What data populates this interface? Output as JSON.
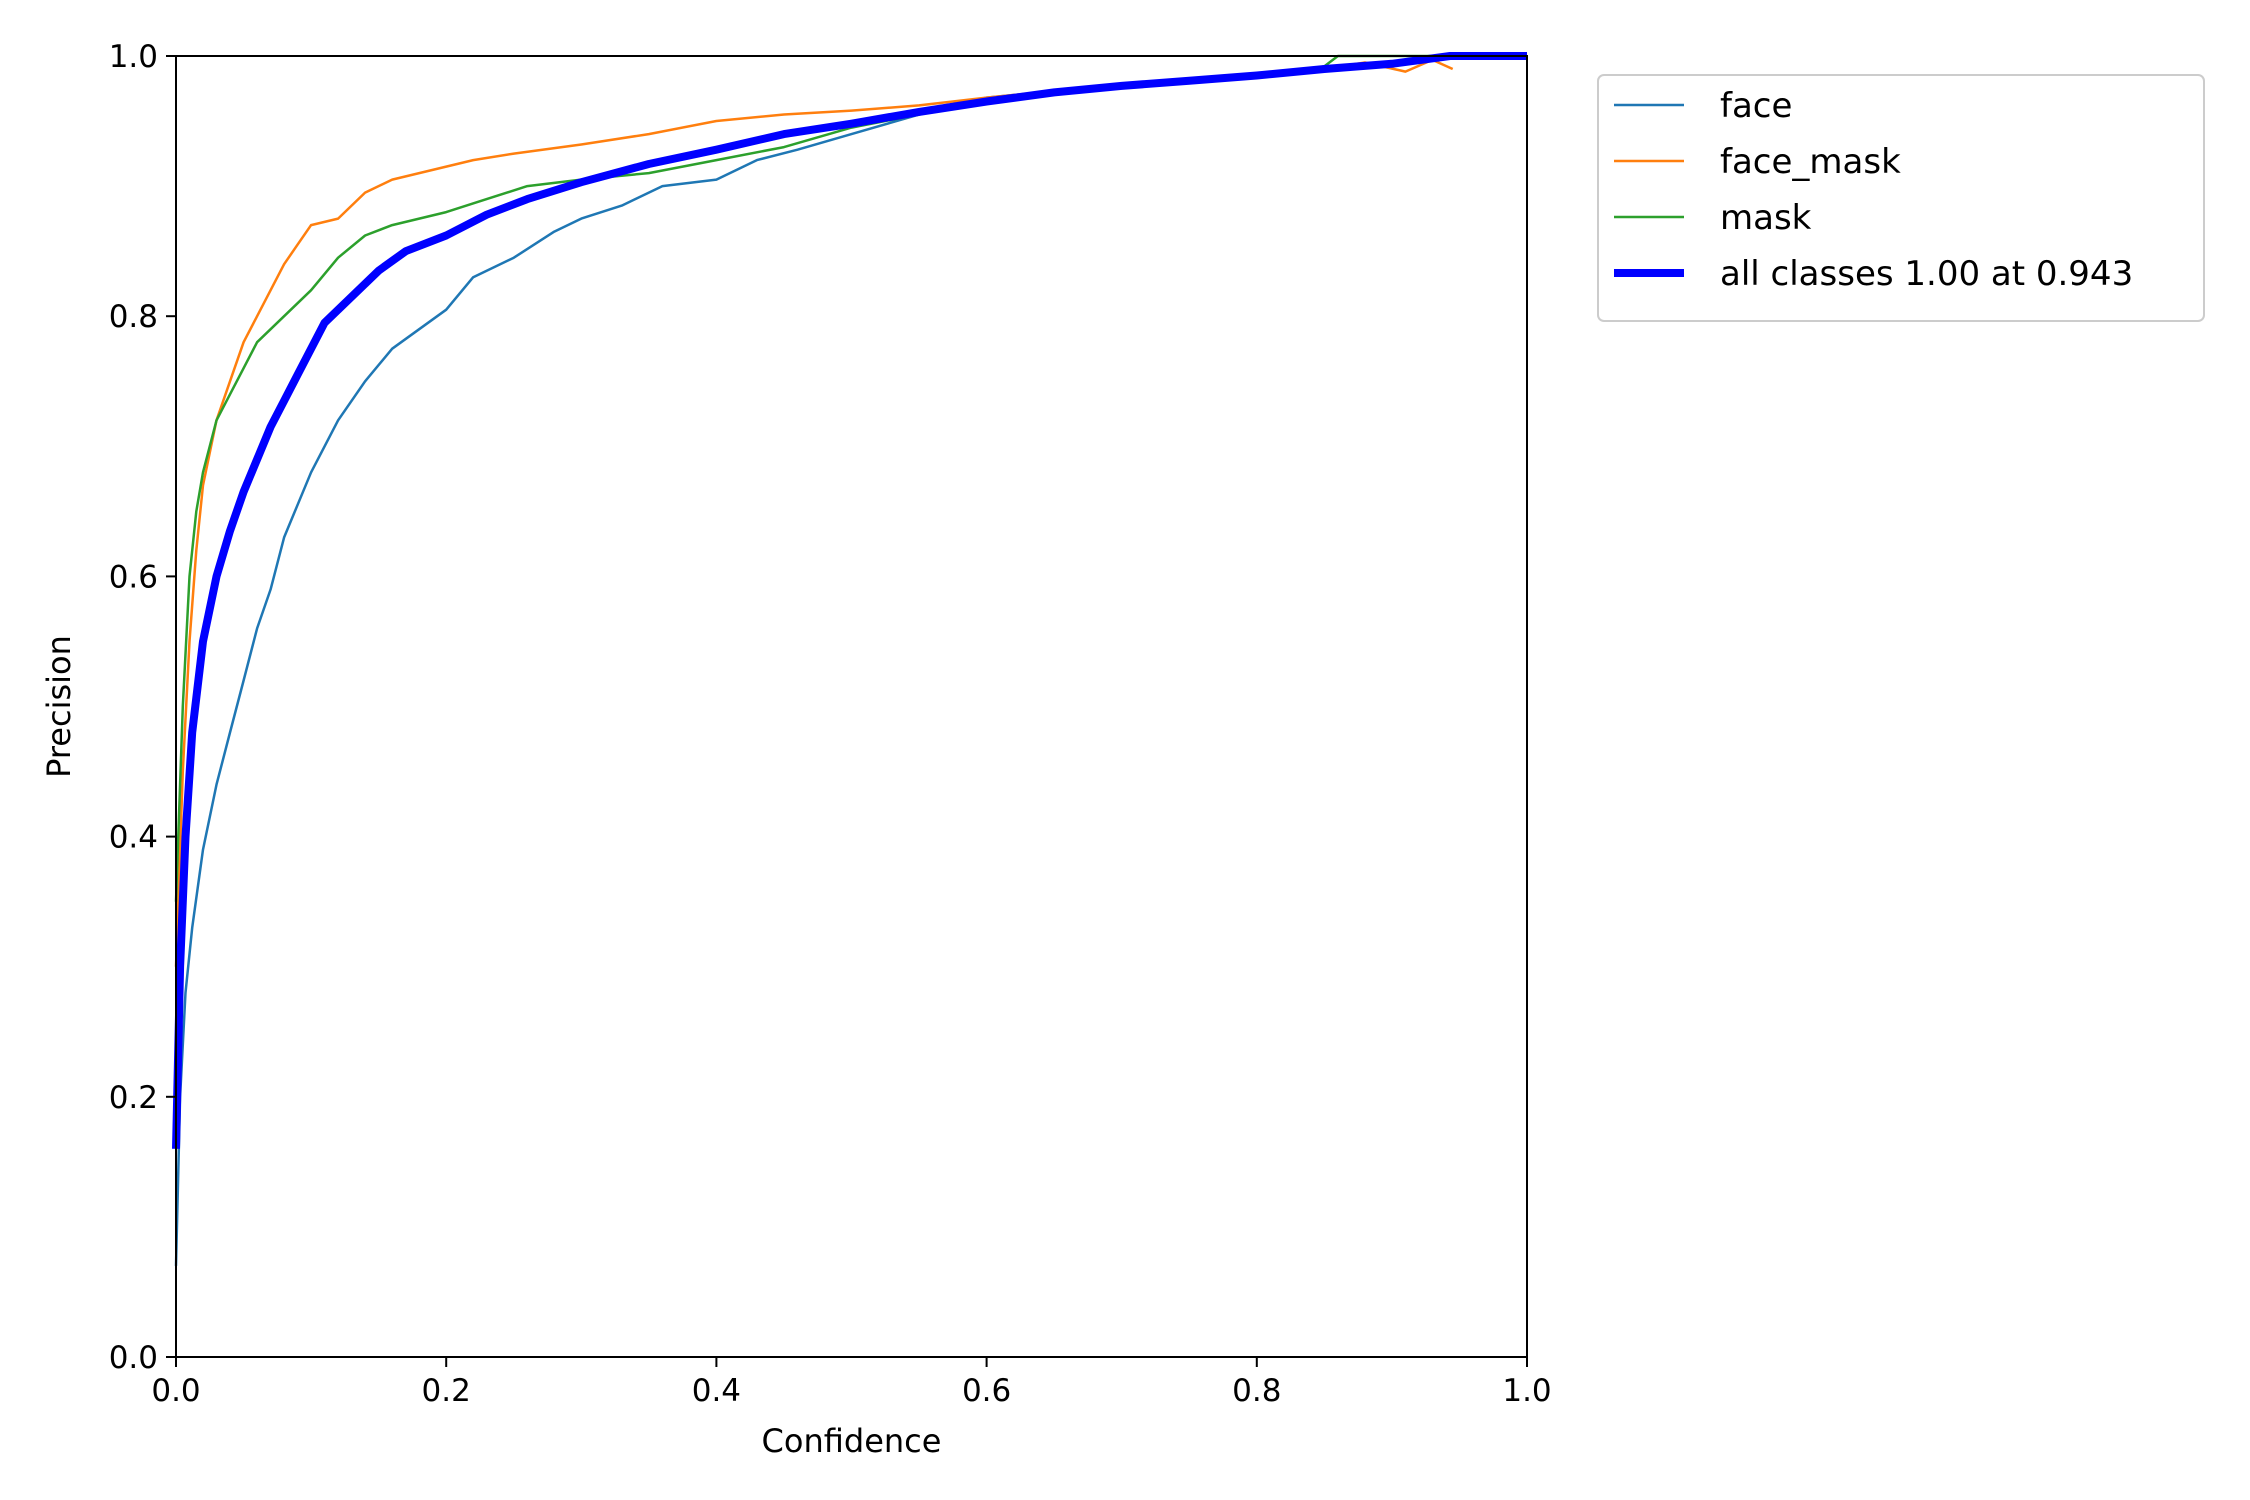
{
  "chart_data": {
    "type": "line",
    "title": "",
    "xlabel": "Confidence",
    "ylabel": "Precision",
    "xlim": [
      0.0,
      1.0
    ],
    "ylim": [
      0.0,
      1.0
    ],
    "x_ticks": [
      "0.0",
      "0.2",
      "0.4",
      "0.6",
      "0.8",
      "1.0"
    ],
    "y_ticks": [
      "0.0",
      "0.2",
      "0.4",
      "0.6",
      "0.8",
      "1.0"
    ],
    "grid": false,
    "legend_position": "outside top-right",
    "series": [
      {
        "name": "face",
        "color": "#1f77b4",
        "emphasis": "thin",
        "points": [
          [
            0.0,
            0.07
          ],
          [
            0.003,
            0.2
          ],
          [
            0.007,
            0.28
          ],
          [
            0.012,
            0.33
          ],
          [
            0.02,
            0.39
          ],
          [
            0.03,
            0.44
          ],
          [
            0.04,
            0.48
          ],
          [
            0.05,
            0.52
          ],
          [
            0.06,
            0.56
          ],
          [
            0.07,
            0.59
          ],
          [
            0.08,
            0.63
          ],
          [
            0.09,
            0.655
          ],
          [
            0.1,
            0.68
          ],
          [
            0.12,
            0.72
          ],
          [
            0.14,
            0.75
          ],
          [
            0.16,
            0.775
          ],
          [
            0.18,
            0.79
          ],
          [
            0.2,
            0.805
          ],
          [
            0.22,
            0.83
          ],
          [
            0.25,
            0.845
          ],
          [
            0.28,
            0.865
          ],
          [
            0.3,
            0.875
          ],
          [
            0.33,
            0.885
          ],
          [
            0.36,
            0.9
          ],
          [
            0.4,
            0.905
          ],
          [
            0.43,
            0.92
          ],
          [
            0.46,
            0.928
          ],
          [
            0.5,
            0.94
          ],
          [
            0.55,
            0.955
          ],
          [
            0.6,
            0.968
          ],
          [
            0.65,
            0.973
          ],
          [
            0.7,
            0.978
          ],
          [
            0.75,
            0.982
          ],
          [
            0.8,
            0.985
          ],
          [
            0.85,
            0.99
          ],
          [
            0.9,
            0.995
          ],
          [
            0.94,
            1.0
          ],
          [
            1.0,
            1.0
          ]
        ]
      },
      {
        "name": "face_mask",
        "color": "#ff7f0e",
        "emphasis": "thin",
        "points": [
          [
            0.0,
            0.3
          ],
          [
            0.005,
            0.45
          ],
          [
            0.01,
            0.55
          ],
          [
            0.015,
            0.62
          ],
          [
            0.02,
            0.67
          ],
          [
            0.03,
            0.72
          ],
          [
            0.04,
            0.75
          ],
          [
            0.05,
            0.78
          ],
          [
            0.06,
            0.8
          ],
          [
            0.07,
            0.82
          ],
          [
            0.08,
            0.84
          ],
          [
            0.09,
            0.855
          ],
          [
            0.1,
            0.87
          ],
          [
            0.12,
            0.875
          ],
          [
            0.14,
            0.895
          ],
          [
            0.16,
            0.905
          ],
          [
            0.18,
            0.91
          ],
          [
            0.2,
            0.915
          ],
          [
            0.22,
            0.92
          ],
          [
            0.25,
            0.925
          ],
          [
            0.3,
            0.932
          ],
          [
            0.35,
            0.94
          ],
          [
            0.4,
            0.95
          ],
          [
            0.45,
            0.955
          ],
          [
            0.5,
            0.958
          ],
          [
            0.55,
            0.962
          ],
          [
            0.6,
            0.968
          ],
          [
            0.65,
            0.973
          ],
          [
            0.7,
            0.977
          ],
          [
            0.75,
            0.98
          ],
          [
            0.8,
            0.985
          ],
          [
            0.85,
            0.99
          ],
          [
            0.88,
            0.995
          ],
          [
            0.91,
            0.988
          ],
          [
            0.93,
            0.997
          ],
          [
            0.945,
            0.99
          ]
        ]
      },
      {
        "name": "mask",
        "color": "#2ca02c",
        "emphasis": "thin",
        "points": [
          [
            0.0,
            0.35
          ],
          [
            0.005,
            0.5
          ],
          [
            0.01,
            0.6
          ],
          [
            0.015,
            0.65
          ],
          [
            0.02,
            0.68
          ],
          [
            0.03,
            0.72
          ],
          [
            0.04,
            0.74
          ],
          [
            0.05,
            0.76
          ],
          [
            0.06,
            0.78
          ],
          [
            0.08,
            0.8
          ],
          [
            0.1,
            0.82
          ],
          [
            0.12,
            0.845
          ],
          [
            0.14,
            0.862
          ],
          [
            0.16,
            0.87
          ],
          [
            0.18,
            0.875
          ],
          [
            0.2,
            0.88
          ],
          [
            0.23,
            0.89
          ],
          [
            0.26,
            0.9
          ],
          [
            0.3,
            0.905
          ],
          [
            0.35,
            0.91
          ],
          [
            0.4,
            0.92
          ],
          [
            0.45,
            0.93
          ],
          [
            0.5,
            0.945
          ],
          [
            0.55,
            0.955
          ],
          [
            0.6,
            0.965
          ],
          [
            0.65,
            0.972
          ],
          [
            0.7,
            0.977
          ],
          [
            0.75,
            0.98
          ],
          [
            0.8,
            0.985
          ],
          [
            0.85,
            0.992
          ],
          [
            0.86,
            1.0
          ],
          [
            0.9,
            1.0
          ],
          [
            1.0,
            1.0
          ]
        ]
      },
      {
        "name": "all classes 1.00 at 0.943",
        "color": "#0000ff",
        "emphasis": "thick",
        "points": [
          [
            0.0,
            0.16
          ],
          [
            0.003,
            0.3
          ],
          [
            0.007,
            0.4
          ],
          [
            0.012,
            0.48
          ],
          [
            0.02,
            0.55
          ],
          [
            0.03,
            0.6
          ],
          [
            0.04,
            0.635
          ],
          [
            0.05,
            0.665
          ],
          [
            0.06,
            0.69
          ],
          [
            0.07,
            0.715
          ],
          [
            0.08,
            0.735
          ],
          [
            0.09,
            0.755
          ],
          [
            0.1,
            0.775
          ],
          [
            0.11,
            0.795
          ],
          [
            0.13,
            0.815
          ],
          [
            0.15,
            0.835
          ],
          [
            0.17,
            0.85
          ],
          [
            0.2,
            0.862
          ],
          [
            0.23,
            0.878
          ],
          [
            0.26,
            0.89
          ],
          [
            0.3,
            0.903
          ],
          [
            0.35,
            0.917
          ],
          [
            0.4,
            0.928
          ],
          [
            0.45,
            0.94
          ],
          [
            0.5,
            0.948
          ],
          [
            0.55,
            0.957
          ],
          [
            0.6,
            0.965
          ],
          [
            0.65,
            0.972
          ],
          [
            0.7,
            0.977
          ],
          [
            0.75,
            0.981
          ],
          [
            0.8,
            0.985
          ],
          [
            0.85,
            0.99
          ],
          [
            0.9,
            0.994
          ],
          [
            0.943,
            1.0
          ],
          [
            1.0,
            1.0
          ]
        ]
      }
    ]
  }
}
